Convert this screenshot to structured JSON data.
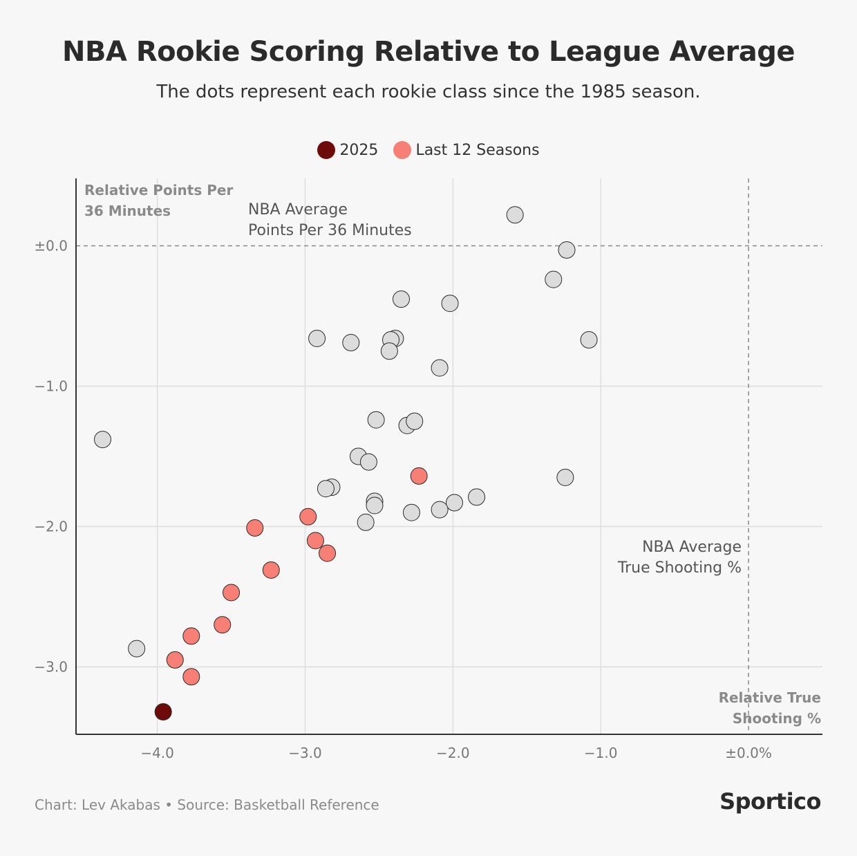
{
  "title": "NBA Rookie Scoring Relative to League Average",
  "subtitle": "The dots represent each rookie class since the 1985 season.",
  "legend": [
    {
      "label": "2025",
      "color": "#6e0a0a"
    },
    {
      "label": "Last 12 Seasons",
      "color": "#f87f76"
    }
  ],
  "footer": {
    "credit": "Chart: Lev Akabas • Source: Basketball Reference",
    "brand": "Sportico"
  },
  "annotations": {
    "y_axis_title": [
      "Relative Points Per",
      "36 Minutes"
    ],
    "x_axis_title": [
      "Relative True",
      "Shooting %"
    ],
    "h_ref_label": [
      "NBA Average",
      "Points Per 36 Minutes"
    ],
    "v_ref_label": [
      "NBA Average",
      "True Shooting %"
    ]
  },
  "chart_data": {
    "type": "scatter",
    "title": "NBA Rookie Scoring Relative to League Average",
    "xlabel": "Relative True Shooting %",
    "ylabel": "Relative Points Per 36 Minutes",
    "xlim": [
      -4.55,
      0.5
    ],
    "ylim": [
      -3.48,
      0.48
    ],
    "x_ticks": [
      {
        "value": -4.0,
        "label": "−4.0"
      },
      {
        "value": -3.0,
        "label": "−3.0"
      },
      {
        "value": -2.0,
        "label": "−2.0"
      },
      {
        "value": -1.0,
        "label": "−1.0"
      },
      {
        "value": 0.0,
        "label": "±0.0%"
      }
    ],
    "y_ticks": [
      {
        "value": 0.0,
        "label": "±0.0"
      },
      {
        "value": -1.0,
        "label": "−1.0"
      },
      {
        "value": -2.0,
        "label": "−2.0"
      },
      {
        "value": -3.0,
        "label": "−3.0"
      }
    ],
    "reference_lines": {
      "x": 0.0,
      "y": 0.0
    },
    "grid": true,
    "colors": {
      "default": "#dcdcdc",
      "last_12": "#f87f76",
      "current": "#6e0a0a",
      "gridline": "#dedede",
      "reference": "#888888"
    },
    "series": [
      {
        "group": "default",
        "points": [
          {
            "x": -1.58,
            "y": 0.22
          },
          {
            "x": -1.23,
            "y": -0.03
          },
          {
            "x": -1.32,
            "y": -0.24
          },
          {
            "x": -2.35,
            "y": -0.38
          },
          {
            "x": -2.02,
            "y": -0.41
          },
          {
            "x": -1.08,
            "y": -0.67
          },
          {
            "x": -2.92,
            "y": -0.66
          },
          {
            "x": -2.69,
            "y": -0.69
          },
          {
            "x": -2.39,
            "y": -0.66
          },
          {
            "x": -2.42,
            "y": -0.67
          },
          {
            "x": -2.43,
            "y": -0.75
          },
          {
            "x": -2.09,
            "y": -0.87
          },
          {
            "x": -2.52,
            "y": -1.24
          },
          {
            "x": -2.31,
            "y": -1.28
          },
          {
            "x": -2.26,
            "y": -1.25
          },
          {
            "x": -4.37,
            "y": -1.38
          },
          {
            "x": -2.64,
            "y": -1.5
          },
          {
            "x": -2.57,
            "y": -1.54
          },
          {
            "x": -1.24,
            "y": -1.65
          },
          {
            "x": -2.82,
            "y": -1.72
          },
          {
            "x": -2.86,
            "y": -1.73
          },
          {
            "x": -2.53,
            "y": -1.82
          },
          {
            "x": -2.53,
            "y": -1.85
          },
          {
            "x": -1.84,
            "y": -1.79
          },
          {
            "x": -1.99,
            "y": -1.83
          },
          {
            "x": -2.09,
            "y": -1.88
          },
          {
            "x": -2.28,
            "y": -1.9
          },
          {
            "x": -2.59,
            "y": -1.97
          },
          {
            "x": -4.14,
            "y": -2.87
          }
        ]
      },
      {
        "group": "last_12",
        "name": "Last 12 Seasons",
        "points": [
          {
            "x": -2.23,
            "y": -1.64
          },
          {
            "x": -2.98,
            "y": -1.93
          },
          {
            "x": -3.34,
            "y": -2.01
          },
          {
            "x": -2.93,
            "y": -2.1
          },
          {
            "x": -2.85,
            "y": -2.19
          },
          {
            "x": -3.23,
            "y": -2.31
          },
          {
            "x": -3.5,
            "y": -2.47
          },
          {
            "x": -3.56,
            "y": -2.7
          },
          {
            "x": -3.77,
            "y": -2.78
          },
          {
            "x": -3.88,
            "y": -2.95
          },
          {
            "x": -3.77,
            "y": -3.07
          }
        ]
      },
      {
        "group": "current",
        "name": "2025",
        "points": [
          {
            "x": -3.96,
            "y": -3.32
          }
        ]
      }
    ]
  }
}
